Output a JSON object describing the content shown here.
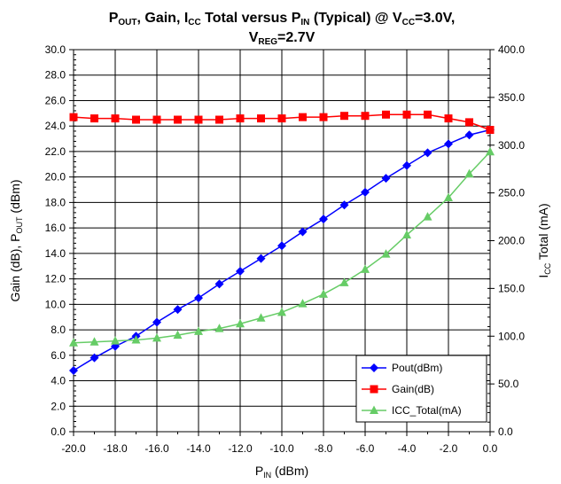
{
  "chart_data": {
    "type": "line",
    "title": {
      "parts": [
        {
          "text": "P"
        },
        {
          "text": "OUT",
          "sub": true
        },
        {
          "text": ", Gain, I"
        },
        {
          "text": "CC",
          "sub": true
        },
        {
          "text": " Total versus P"
        },
        {
          "text": "IN",
          "sub": true
        },
        {
          "text": " (Typical) @ V"
        },
        {
          "text": "CC",
          "sub": true
        },
        {
          "text": "=3.0V,"
        }
      ],
      "line2_parts": [
        {
          "text": "V"
        },
        {
          "text": "REG",
          "sub": true
        },
        {
          "text": "=2.7V"
        }
      ]
    },
    "x_axis": {
      "label_main": "P",
      "label_sub": "IN",
      "label_rest": " (dBm)",
      "range": [
        -20.0,
        0.0
      ],
      "ticks": [
        "-20.0",
        "-18.0",
        "-16.0",
        "-14.0",
        "-12.0",
        "-10.0",
        "-8.0",
        "-6.0",
        "-4.0",
        "-2.0",
        "0.0"
      ]
    },
    "y_left": {
      "label_main": "Gain (dB), P",
      "label_sub": "OUT",
      "label_rest": " (dBm)",
      "range": [
        0.0,
        30.0
      ],
      "ticks": [
        "0.0",
        "2.0",
        "4.0",
        "6.0",
        "8.0",
        "10.0",
        "12.0",
        "14.0",
        "16.0",
        "18.0",
        "20.0",
        "22.0",
        "24.0",
        "26.0",
        "28.0",
        "30.0"
      ]
    },
    "y_right": {
      "label_main": "I",
      "label_sub": "CC",
      "label_rest": " Total (mA)",
      "range": [
        0.0,
        400.0
      ],
      "ticks": [
        "0.0",
        "50.0",
        "100.0",
        "150.0",
        "200.0",
        "250.0",
        "300.0",
        "350.0",
        "400.0"
      ]
    },
    "grid": true,
    "legend_position": "bottom-right",
    "x": [
      -20,
      -19,
      -18,
      -17,
      -16,
      -15,
      -14,
      -13,
      -12,
      -11,
      -10,
      -9,
      -8,
      -7,
      -6,
      -5,
      -4,
      -3,
      -2,
      -1,
      0
    ],
    "series": [
      {
        "name": "Pout(dBm)",
        "axis": "left",
        "color": "#0000ff",
        "marker": "diamond",
        "values": [
          4.8,
          5.8,
          6.7,
          7.5,
          8.6,
          9.6,
          10.5,
          11.6,
          12.6,
          13.6,
          14.6,
          15.7,
          16.7,
          17.8,
          18.8,
          19.9,
          20.9,
          21.9,
          22.6,
          23.3,
          23.7
        ]
      },
      {
        "name": "Gain(dB)",
        "axis": "left",
        "color": "#ff0000",
        "marker": "square",
        "values": [
          24.7,
          24.6,
          24.6,
          24.5,
          24.5,
          24.5,
          24.5,
          24.5,
          24.6,
          24.6,
          24.6,
          24.7,
          24.7,
          24.8,
          24.8,
          24.9,
          24.9,
          24.9,
          24.6,
          24.3,
          23.7
        ]
      },
      {
        "name": "ICC_Total(mA)",
        "axis": "right",
        "color": "#66cc66",
        "marker": "triangle",
        "values": [
          93,
          94,
          95,
          96,
          98,
          101,
          105,
          108,
          113,
          119,
          125,
          134,
          144,
          156,
          170,
          186,
          206,
          225,
          245,
          270,
          293
        ]
      }
    ]
  }
}
